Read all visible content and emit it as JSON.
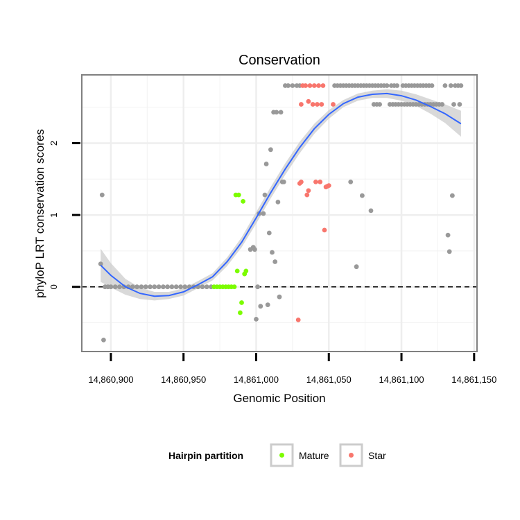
{
  "chart_data": {
    "type": "scatter",
    "title": "Conservation",
    "xlabel": "Genomic Position",
    "ylabel": "phyloP LRT conservation scores",
    "xlim": [
      14860880,
      14861152
    ],
    "ylim": [
      -0.9,
      2.95
    ],
    "x_ticks": [
      14860900,
      14860950,
      14861000,
      14861050,
      14861100,
      14861150
    ],
    "x_tick_labels": [
      "14,860,900",
      "14,860,950",
      "14,861,000",
      "14,861,050",
      "14,861,100",
      "14,861,150"
    ],
    "y_ticks": [
      0,
      1,
      2
    ],
    "y_tick_labels": [
      "0",
      "1",
      "2"
    ],
    "y_minor_gridlines": [
      -0.5,
      0.5,
      1.5,
      2.5
    ],
    "x_minor_gridlines": [
      14860925,
      14860975,
      14861025,
      14861075,
      14861125
    ],
    "reference_line": {
      "y": 0,
      "style": "dashed"
    },
    "colors": {
      "other": "#999999",
      "Mature": "#7CFC00",
      "Star": "#F8766D",
      "smooth": "#3366FF",
      "ribbon": "#CCCCCC"
    },
    "legend": {
      "title": "Hairpin partition",
      "position": "bottom",
      "entries": [
        {
          "label": "Mature",
          "color": "#7CFC00"
        },
        {
          "label": "Star",
          "color": "#F8766D"
        }
      ]
    },
    "series": [
      {
        "name": "Other",
        "color": "#999999",
        "points": [
          [
            14860893,
            0.32
          ],
          [
            14860894,
            1.28
          ],
          [
            14860895,
            -0.74
          ],
          [
            14860896,
            0.0
          ],
          [
            14860898,
            0.0
          ],
          [
            14860900,
            0.0
          ],
          [
            14860903,
            0.0
          ],
          [
            14860906,
            0.0
          ],
          [
            14860909,
            0.0
          ],
          [
            14860912,
            0.0
          ],
          [
            14860915,
            0.0
          ],
          [
            14860918,
            0.0
          ],
          [
            14860921,
            0.0
          ],
          [
            14860924,
            0.0
          ],
          [
            14860927,
            0.0
          ],
          [
            14860930,
            0.0
          ],
          [
            14860933,
            0.0
          ],
          [
            14860936,
            0.0
          ],
          [
            14860939,
            0.0
          ],
          [
            14860942,
            0.0
          ],
          [
            14860945,
            0.0
          ],
          [
            14860948,
            0.0
          ],
          [
            14860951,
            0.0
          ],
          [
            14860954,
            0.0
          ],
          [
            14860957,
            0.0
          ],
          [
            14860960,
            0.0
          ],
          [
            14860963,
            0.0
          ],
          [
            14860966,
            0.0
          ],
          [
            14860969,
            0.0
          ],
          [
            14860996,
            0.52
          ],
          [
            14860998,
            0.55
          ],
          [
            14860999,
            0.52
          ],
          [
            14861000,
            -0.45
          ],
          [
            14861001,
            0.0
          ],
          [
            14861002,
            1.02
          ],
          [
            14861003,
            -0.27
          ],
          [
            14861005,
            1.02
          ],
          [
            14861006,
            1.28
          ],
          [
            14861007,
            1.71
          ],
          [
            14861008,
            -0.25
          ],
          [
            14861009,
            0.75
          ],
          [
            14861010,
            1.91
          ],
          [
            14861011,
            0.48
          ],
          [
            14861012,
            2.43
          ],
          [
            14861013,
            0.35
          ],
          [
            14861014,
            2.43
          ],
          [
            14861015,
            1.18
          ],
          [
            14861016,
            -0.14
          ],
          [
            14861017,
            2.43
          ],
          [
            14861018,
            1.46
          ],
          [
            14861019,
            1.46
          ],
          [
            14861020,
            2.8
          ],
          [
            14861022,
            2.8
          ],
          [
            14861025,
            2.8
          ],
          [
            14861028,
            2.8
          ],
          [
            14861030,
            2.8
          ],
          [
            14861054,
            2.8
          ],
          [
            14861056,
            2.8
          ],
          [
            14861058,
            2.8
          ],
          [
            14861060,
            2.8
          ],
          [
            14861062,
            2.8
          ],
          [
            14861064,
            2.8
          ],
          [
            14861065,
            1.46
          ],
          [
            14861066,
            2.8
          ],
          [
            14861068,
            2.8
          ],
          [
            14861069,
            0.28
          ],
          [
            14861070,
            2.8
          ],
          [
            14861072,
            2.8
          ],
          [
            14861073,
            1.27
          ],
          [
            14861074,
            2.8
          ],
          [
            14861076,
            2.8
          ],
          [
            14861078,
            2.8
          ],
          [
            14861079,
            1.06
          ],
          [
            14861080,
            2.8
          ],
          [
            14861081,
            2.54
          ],
          [
            14861082,
            2.8
          ],
          [
            14861083,
            2.54
          ],
          [
            14861084,
            2.8
          ],
          [
            14861085,
            2.54
          ],
          [
            14861086,
            2.8
          ],
          [
            14861088,
            2.8
          ],
          [
            14861090,
            2.8
          ],
          [
            14861092,
            2.54
          ],
          [
            14861093,
            2.8
          ],
          [
            14861094,
            2.54
          ],
          [
            14861095,
            2.8
          ],
          [
            14861096,
            2.54
          ],
          [
            14861097,
            2.8
          ],
          [
            14861098,
            2.54
          ],
          [
            14861100,
            2.54
          ],
          [
            14861101,
            2.8
          ],
          [
            14861102,
            2.54
          ],
          [
            14861103,
            2.8
          ],
          [
            14861104,
            2.54
          ],
          [
            14861105,
            2.8
          ],
          [
            14861106,
            2.54
          ],
          [
            14861107,
            2.8
          ],
          [
            14861108,
            2.54
          ],
          [
            14861109,
            2.8
          ],
          [
            14861110,
            2.54
          ],
          [
            14861111,
            2.8
          ],
          [
            14861112,
            2.54
          ],
          [
            14861113,
            2.8
          ],
          [
            14861114,
            2.54
          ],
          [
            14861115,
            2.8
          ],
          [
            14861116,
            2.54
          ],
          [
            14861117,
            2.8
          ],
          [
            14861118,
            2.54
          ],
          [
            14861119,
            2.8
          ],
          [
            14861120,
            2.54
          ],
          [
            14861121,
            2.8
          ],
          [
            14861122,
            2.54
          ],
          [
            14861124,
            2.54
          ],
          [
            14861126,
            2.54
          ],
          [
            14861128,
            2.54
          ],
          [
            14861130,
            2.8
          ],
          [
            14861132,
            0.72
          ],
          [
            14861133,
            0.49
          ],
          [
            14861134,
            2.8
          ],
          [
            14861135,
            1.27
          ],
          [
            14861136,
            2.54
          ],
          [
            14861137,
            2.8
          ],
          [
            14861139,
            2.8
          ],
          [
            14861140,
            2.54
          ],
          [
            14861141,
            2.8
          ]
        ]
      },
      {
        "name": "Mature",
        "color": "#7CFC00",
        "points": [
          [
            14860971,
            0.0
          ],
          [
            14860973,
            0.0
          ],
          [
            14860975,
            0.0
          ],
          [
            14860977,
            0.0
          ],
          [
            14860979,
            0.0
          ],
          [
            14860981,
            0.0
          ],
          [
            14860983,
            0.0
          ],
          [
            14860985,
            0.0
          ],
          [
            14860986,
            1.28
          ],
          [
            14860987,
            0.22
          ],
          [
            14860988,
            1.28
          ],
          [
            14860989,
            -0.36
          ],
          [
            14860990,
            -0.22
          ],
          [
            14860991,
            1.19
          ],
          [
            14860992,
            0.18
          ],
          [
            14860993,
            0.22
          ]
        ]
      },
      {
        "name": "Star",
        "color": "#F8766D",
        "points": [
          [
            14861029,
            -0.46
          ],
          [
            14861030,
            1.44
          ],
          [
            14861031,
            1.46
          ],
          [
            14861031,
            2.54
          ],
          [
            14861032,
            2.8
          ],
          [
            14861034,
            2.8
          ],
          [
            14861035,
            1.28
          ],
          [
            14861036,
            1.34
          ],
          [
            14861036,
            2.58
          ],
          [
            14861037,
            2.8
          ],
          [
            14861039,
            2.54
          ],
          [
            14861040,
            2.8
          ],
          [
            14861041,
            1.46
          ],
          [
            14861042,
            2.54
          ],
          [
            14861043,
            2.8
          ],
          [
            14861044,
            1.46
          ],
          [
            14861045,
            2.54
          ],
          [
            14861046,
            2.8
          ],
          [
            14861047,
            0.79
          ],
          [
            14861048,
            1.39
          ],
          [
            14861049,
            1.4
          ],
          [
            14861050,
            1.41
          ],
          [
            14861053,
            2.54
          ]
        ]
      }
    ],
    "smooth": {
      "x": [
        14860893,
        14860900,
        14860910,
        14860920,
        14860930,
        14860940,
        14860950,
        14860960,
        14860970,
        14860980,
        14860990,
        14861000,
        14861010,
        14861020,
        14861030,
        14861040,
        14861050,
        14861060,
        14861070,
        14861080,
        14861090,
        14861100,
        14861110,
        14861120,
        14861130,
        14861141
      ],
      "y": [
        0.3,
        0.16,
        0.0,
        -0.09,
        -0.13,
        -0.12,
        -0.07,
        0.03,
        0.14,
        0.35,
        0.62,
        0.96,
        1.31,
        1.64,
        1.94,
        2.2,
        2.4,
        2.55,
        2.64,
        2.68,
        2.69,
        2.66,
        2.6,
        2.51,
        2.41,
        2.27
      ],
      "se": [
        0.23,
        0.17,
        0.11,
        0.08,
        0.06,
        0.05,
        0.05,
        0.05,
        0.05,
        0.06,
        0.07,
        0.08,
        0.08,
        0.08,
        0.08,
        0.07,
        0.06,
        0.05,
        0.05,
        0.05,
        0.06,
        0.07,
        0.08,
        0.1,
        0.13,
        0.18
      ]
    }
  }
}
